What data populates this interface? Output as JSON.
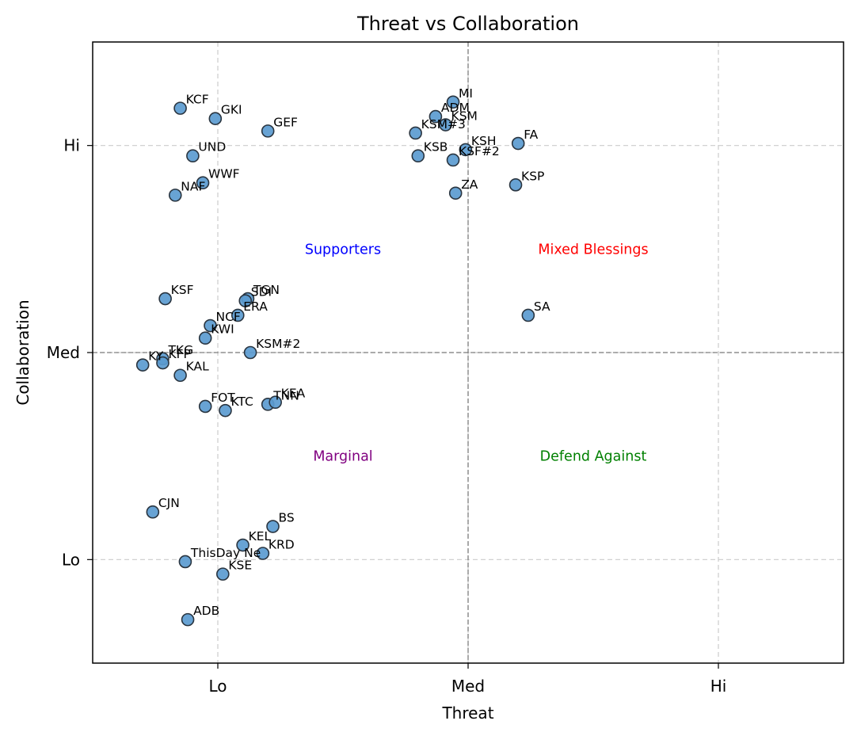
{
  "chart_data": {
    "type": "scatter",
    "title": "Threat vs Collaboration",
    "xlabel": "Threat",
    "ylabel": "Collaboration",
    "xlim": [
      0.5,
      3.5
    ],
    "ylim": [
      0.5,
      3.5
    ],
    "xticks": [
      {
        "value": 1,
        "label": "Lo"
      },
      {
        "value": 2,
        "label": "Med"
      },
      {
        "value": 3,
        "label": "Hi"
      }
    ],
    "yticks": [
      {
        "value": 1,
        "label": "Lo"
      },
      {
        "value": 2,
        "label": "Med"
      },
      {
        "value": 3,
        "label": "Hi"
      }
    ],
    "grid": true,
    "reference_lines": {
      "x": 2,
      "y": 2
    },
    "marker_color": "#5b9bd0",
    "marker_edge_color": "#2a3540",
    "quadrant_labels": [
      {
        "text": "Supporters",
        "x": 1.5,
        "y": 2.5,
        "color": "#0000ff"
      },
      {
        "text": "Mixed Blessings",
        "x": 2.5,
        "y": 2.5,
        "color": "#ff0000"
      },
      {
        "text": "Marginal",
        "x": 1.5,
        "y": 1.5,
        "color": "#800080"
      },
      {
        "text": "Defend Against",
        "x": 2.5,
        "y": 1.5,
        "color": "#008000"
      }
    ],
    "points": [
      {
        "label": "KCF",
        "x": 0.85,
        "y": 3.18
      },
      {
        "label": "GKI",
        "x": 0.99,
        "y": 3.13
      },
      {
        "label": "GEF",
        "x": 1.2,
        "y": 3.07
      },
      {
        "label": "UND",
        "x": 0.9,
        "y": 2.95
      },
      {
        "label": "WWF",
        "x": 0.94,
        "y": 2.82
      },
      {
        "label": "NAF",
        "x": 0.83,
        "y": 2.76
      },
      {
        "label": "MI",
        "x": 1.94,
        "y": 3.21
      },
      {
        "label": "ADM",
        "x": 1.87,
        "y": 3.14
      },
      {
        "label": "KSM",
        "x": 1.91,
        "y": 3.1
      },
      {
        "label": "KSM#3",
        "x": 1.79,
        "y": 3.06
      },
      {
        "label": "KSH",
        "x": 1.99,
        "y": 2.98
      },
      {
        "label": "FA",
        "x": 2.2,
        "y": 3.01
      },
      {
        "label": "KSB",
        "x": 1.8,
        "y": 2.95
      },
      {
        "label": "KSF#2",
        "x": 1.94,
        "y": 2.93
      },
      {
        "label": "ZA",
        "x": 1.95,
        "y": 2.77
      },
      {
        "label": "KSP",
        "x": 2.19,
        "y": 2.81
      },
      {
        "label": "KSF",
        "x": 0.79,
        "y": 2.26
      },
      {
        "label": "TGN",
        "x": 1.12,
        "y": 2.26
      },
      {
        "label": "SDI",
        "x": 1.11,
        "y": 2.25
      },
      {
        "label": "ERA",
        "x": 1.08,
        "y": 2.18
      },
      {
        "label": "NCF",
        "x": 0.97,
        "y": 2.13
      },
      {
        "label": "KWI",
        "x": 0.95,
        "y": 2.07
      },
      {
        "label": "SA",
        "x": 2.24,
        "y": 2.18
      },
      {
        "label": "KSM#2",
        "x": 1.13,
        "y": 2.0
      },
      {
        "label": "TKG",
        "x": 0.78,
        "y": 1.97
      },
      {
        "label": "KY",
        "x": 0.7,
        "y": 1.94
      },
      {
        "label": "KFP",
        "x": 0.78,
        "y": 1.95
      },
      {
        "label": "KAL",
        "x": 0.85,
        "y": 1.89
      },
      {
        "label": "FOT",
        "x": 0.95,
        "y": 1.74
      },
      {
        "label": "KTC",
        "x": 1.03,
        "y": 1.72
      },
      {
        "label": "TNN",
        "x": 1.2,
        "y": 1.75
      },
      {
        "label": "KEA",
        "x": 1.23,
        "y": 1.76
      },
      {
        "label": "CJN",
        "x": 0.74,
        "y": 1.23
      },
      {
        "label": "BS",
        "x": 1.22,
        "y": 1.16
      },
      {
        "label": "KEL",
        "x": 1.1,
        "y": 1.07
      },
      {
        "label": "KRD",
        "x": 1.18,
        "y": 1.03
      },
      {
        "label": "ThisDay Ne",
        "x": 0.87,
        "y": 0.99
      },
      {
        "label": "KSE",
        "x": 1.02,
        "y": 0.93
      },
      {
        "label": "ADB",
        "x": 0.88,
        "y": 0.71
      }
    ]
  }
}
